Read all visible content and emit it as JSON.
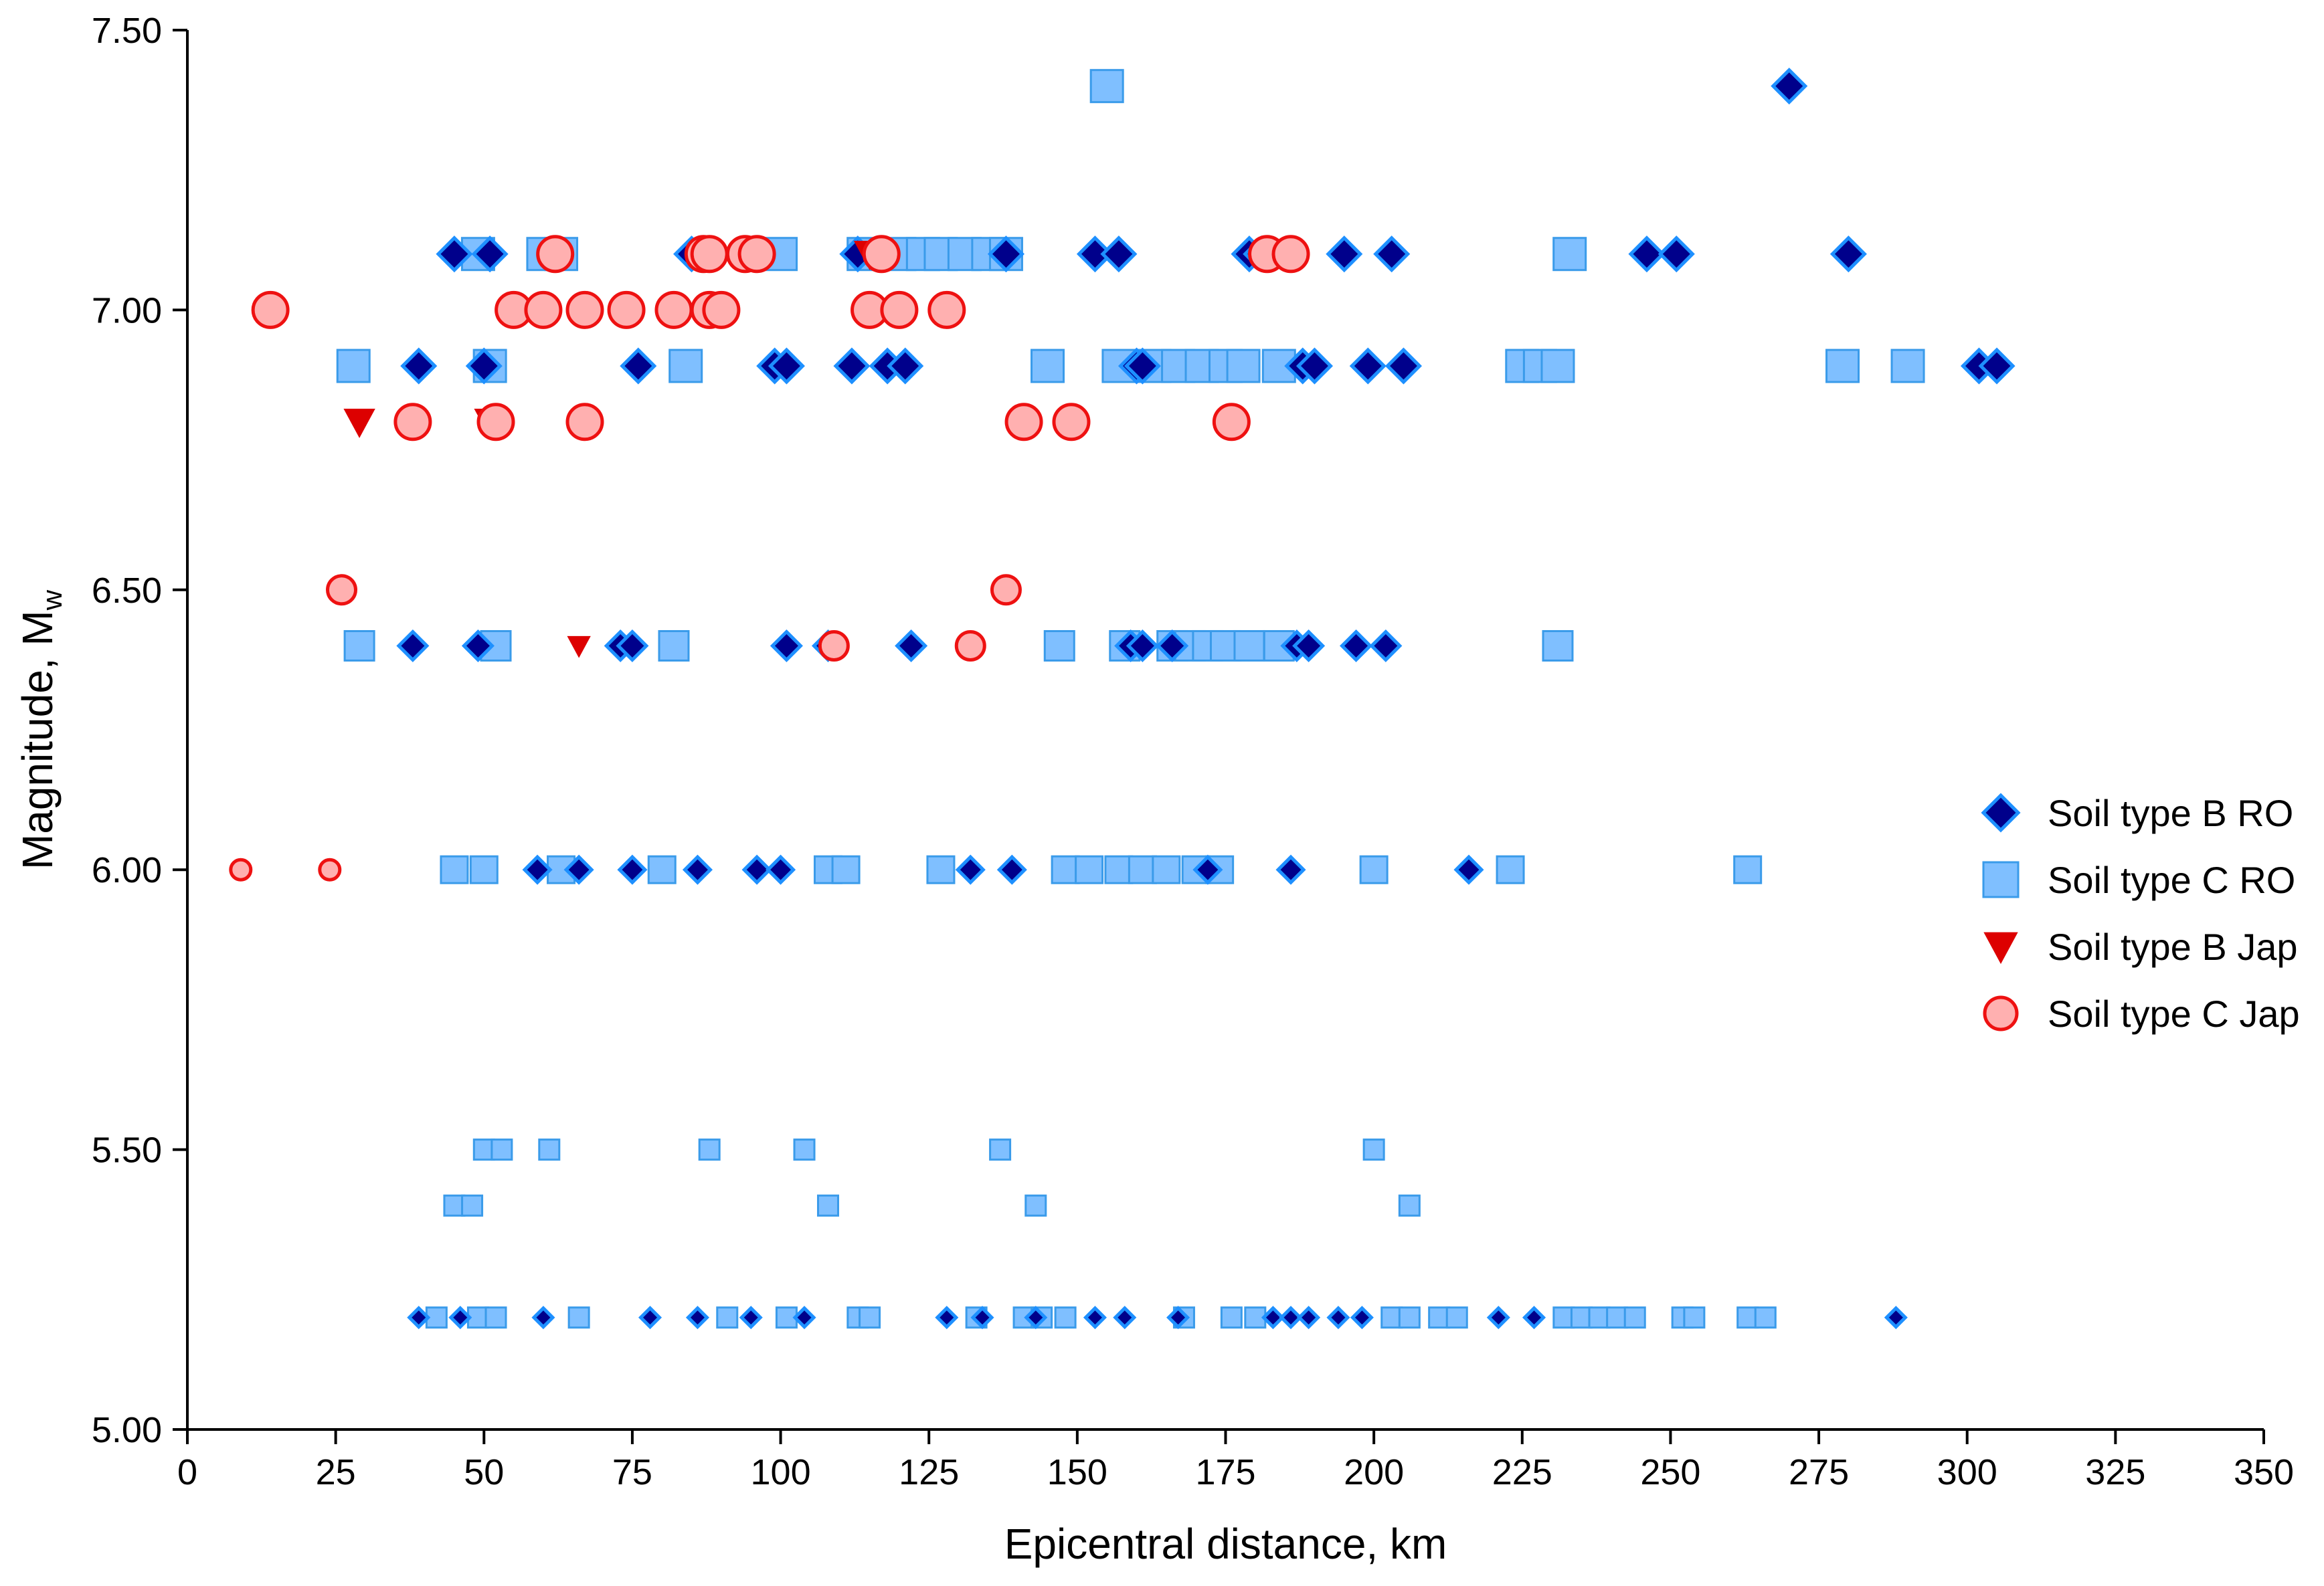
{
  "chart_data": {
    "type": "scatter",
    "title": "",
    "xlabel": "Epicentral distance, km",
    "ylabel": "Magnitude, M",
    "ylabel_subscript": "w",
    "xlim": [
      0,
      350
    ],
    "ylim": [
      5.0,
      7.5
    ],
    "xticks": [
      "0",
      "25",
      "50",
      "75",
      "100",
      "125",
      "150",
      "175",
      "200",
      "225",
      "250",
      "275",
      "300",
      "325",
      "350"
    ],
    "yticks": [
      "5.00",
      "5.50",
      "6.00",
      "6.50",
      "7.00",
      "7.50"
    ],
    "grid": false,
    "legend_position": "right",
    "series": [
      {
        "name": "Soil type B RO",
        "marker": "diamond",
        "color": "#00008B",
        "groups": [
          {
            "y": 7.4,
            "x": [
              270
            ]
          },
          {
            "y": 7.1,
            "x": [
              45,
              51,
              85,
              113,
              117,
              138,
              153,
              157,
              179,
              181,
              186,
              195,
              203,
              246,
              251,
              280
            ]
          },
          {
            "y": 6.9,
            "x": [
              39,
              50,
              76,
              99,
              101,
              112,
              118,
              121,
              160,
              161,
              188,
              190,
              199,
              205,
              302,
              305
            ]
          },
          {
            "y": 6.4,
            "x": [
              38,
              49,
              73,
              75,
              101,
              108,
              122,
              159,
              161,
              166,
              187,
              189,
              197,
              202
            ]
          },
          {
            "y": 6.0,
            "x": [
              59,
              66,
              75,
              86,
              96,
              100,
              132,
              139,
              172,
              186,
              216
            ]
          },
          {
            "y": 5.2,
            "x": [
              39,
              46,
              60,
              78,
              86,
              95,
              104,
              128,
              134,
              143,
              153,
              158,
              167,
              183,
              186,
              189,
              194,
              198,
              221,
              227,
              288
            ]
          }
        ]
      },
      {
        "name": "Soil type C RO",
        "marker": "square",
        "color": "#7FBFFF",
        "groups": [
          {
            "y": 7.4,
            "x": [
              155
            ]
          },
          {
            "y": 7.1,
            "x": [
              49,
              60,
              63,
              100,
              114,
              120,
              124,
              127,
              131,
              135,
              138,
              233
            ]
          },
          {
            "y": 6.9,
            "x": [
              28,
              51,
              84,
              145,
              157,
              163,
              167,
              171,
              175,
              178,
              184,
              225,
              228,
              231,
              279,
              290
            ]
          },
          {
            "y": 6.4,
            "x": [
              29,
              52,
              82,
              147,
              158,
              166,
              169,
              172,
              175,
              179,
              184,
              231
            ]
          },
          {
            "y": 6.0,
            "x": [
              45,
              50,
              63,
              80,
              108,
              111,
              127,
              148,
              152,
              157,
              161,
              165,
              170,
              174,
              200,
              223,
              263
            ]
          },
          {
            "y": 5.5,
            "x": [
              50,
              53,
              61,
              88,
              104,
              137,
              200
            ]
          },
          {
            "y": 5.4,
            "x": [
              45,
              48,
              108,
              143,
              206
            ]
          },
          {
            "y": 5.2,
            "x": [
              42,
              49,
              52,
              66,
              91,
              101,
              113,
              115,
              133,
              141,
              144,
              148,
              168,
              176,
              180,
              203,
              206,
              211,
              214,
              232,
              235,
              238,
              241,
              244,
              252,
              254,
              263,
              266
            ]
          }
        ]
      },
      {
        "name": "Soil type B Jap",
        "marker": "triangle-down",
        "color": "#DD0000",
        "groups": [
          {
            "y": 7.1,
            "x": [
              115
            ]
          },
          {
            "y": 6.8,
            "x": [
              29,
              51
            ]
          },
          {
            "y": 6.4,
            "x": [
              66
            ]
          }
        ]
      },
      {
        "name": "Soil type C Jap",
        "marker": "circle",
        "color": "#FF9999",
        "groups": [
          {
            "y": 7.1,
            "x": [
              62,
              87,
              88,
              94,
              96,
              117,
              182,
              186
            ]
          },
          {
            "y": 7.0,
            "x": [
              14,
              55,
              60,
              67,
              74,
              82,
              88,
              90,
              115,
              120,
              128
            ]
          },
          {
            "y": 6.8,
            "x": [
              38,
              52,
              67,
              141,
              149,
              176
            ]
          },
          {
            "y": 6.5,
            "x": [
              26,
              138
            ]
          },
          {
            "y": 6.4,
            "x": [
              109,
              132
            ]
          },
          {
            "y": 6.0,
            "x": [
              9,
              24
            ]
          }
        ]
      }
    ],
    "legend": [
      {
        "label": "Soil type B RO",
        "marker": "diamond"
      },
      {
        "label": "Soil type C RO",
        "marker": "square"
      },
      {
        "label": "Soil type B Jap",
        "marker": "triangle-down"
      },
      {
        "label": "Soil type C Jap",
        "marker": "circle"
      }
    ]
  }
}
